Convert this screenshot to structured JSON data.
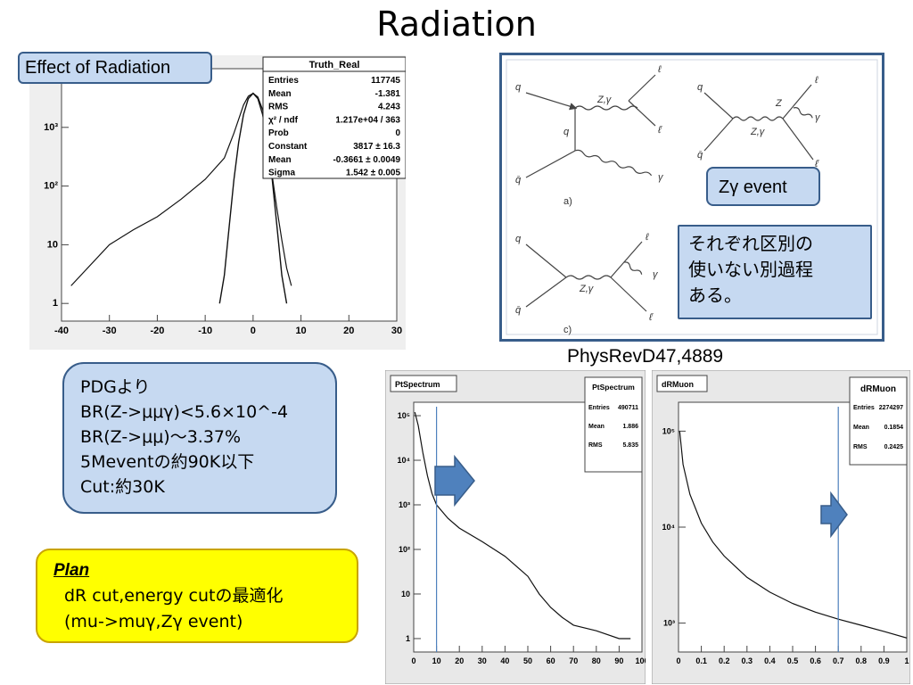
{
  "slide": {
    "title": "Radiation"
  },
  "effect_label": "Effect of Radiation",
  "zgamma_label": "Zγ event",
  "jp_note": [
    "それぞれ区別の",
    "使いない別過程",
    "ある。"
  ],
  "reference": "PhysRevD47,4889",
  "pdg_box": [
    "PDGより",
    "BR(Z->μμγ)<5.6×10^-4",
    "BR(Z->μμ)〜3.37%",
    "5Meventの約90K以下",
    "Cut:約30K"
  ],
  "plan": {
    "title": "Plan",
    "lines": [
      "dR cut,energy cutの最適化",
      "(mu->muγ,Zγ event)"
    ]
  },
  "feynman": {
    "panel_a_label": "a)",
    "panel_c_label": "c)",
    "particles": {
      "q": "q",
      "qbar": "q̄",
      "l": "ℓ",
      "lbar": "ℓ̄",
      "zg": "Z,γ",
      "z": "Z",
      "gamma": "γ"
    }
  },
  "chart_data": [
    {
      "type": "line",
      "id": "truth-real",
      "title": "Truth_Real",
      "stats": [
        {
          "k": "Entries",
          "v": "117745"
        },
        {
          "k": "Mean",
          "v": "-1.381"
        },
        {
          "k": "RMS",
          "v": "4.243"
        },
        {
          "k": "χ² / ndf",
          "v": "1.217e+04 / 363"
        },
        {
          "k": "Prob",
          "v": "0"
        },
        {
          "k": "Constant",
          "v": "3817 ± 16.3"
        },
        {
          "k": "Mean",
          "v": "-0.3661 ± 0.0049"
        },
        {
          "k": "Sigma",
          "v": "1.542 ± 0.005"
        }
      ],
      "xlim": [
        -40,
        30
      ],
      "ylim": [
        0.5,
        10000
      ],
      "yscale": "log",
      "xticks": [
        "-40",
        "-30",
        "-20",
        "-10",
        "0",
        "10",
        "20",
        "30"
      ],
      "ytick_values": [
        1,
        10,
        100,
        1000
      ],
      "ytick_labels": [
        "1",
        "10",
        "10²",
        "10³"
      ],
      "series": [
        {
          "x": [
            -38,
            -30,
            -25,
            -20,
            -15,
            -10,
            -6,
            -4,
            -2,
            -1,
            0,
            1,
            2,
            3,
            4,
            5,
            6,
            7,
            8
          ],
          "y": [
            2,
            10,
            18,
            30,
            60,
            130,
            300,
            800,
            2400,
            3400,
            3800,
            3300,
            2000,
            800,
            150,
            40,
            12,
            4,
            2
          ]
        },
        {
          "x": [
            -7,
            -6,
            -5,
            -4,
            -3,
            -2,
            -1,
            0,
            1,
            2,
            3,
            4,
            5,
            6,
            7
          ],
          "y": [
            1,
            3,
            20,
            130,
            560,
            1650,
            3100,
            3800,
            3100,
            1650,
            560,
            130,
            20,
            3,
            1
          ]
        }
      ]
    },
    {
      "type": "line",
      "id": "pt-spectrum",
      "title": "PtSpectrum",
      "stats": [
        {
          "k": "Entries",
          "v": "490711"
        },
        {
          "k": "Mean",
          "v": "1.886"
        },
        {
          "k": "RMS",
          "v": "5.835"
        }
      ],
      "xlim": [
        0,
        100
      ],
      "ylim": [
        0.5,
        200000
      ],
      "yscale": "log",
      "xticks": [
        "0",
        "10",
        "20",
        "30",
        "40",
        "50",
        "60",
        "70",
        "80",
        "90",
        "100"
      ],
      "ytick_values": [
        1,
        10,
        100,
        1000,
        10000,
        100000
      ],
      "ytick_labels": [
        "1",
        "10",
        "10²",
        "10³",
        "10⁴",
        "10⁵"
      ],
      "cut_x": 10,
      "series": [
        {
          "x": [
            0.5,
            2,
            4,
            6,
            8,
            10,
            15,
            20,
            30,
            40,
            50,
            55,
            60,
            65,
            70,
            80,
            90,
            95
          ],
          "y": [
            120000,
            60000,
            15000,
            4500,
            1800,
            1000,
            500,
            300,
            150,
            70,
            25,
            10,
            5,
            3,
            2,
            1.5,
            1,
            1
          ]
        }
      ]
    },
    {
      "type": "line",
      "id": "dr-muon",
      "title": "dRMuon",
      "stats": [
        {
          "k": "Entries",
          "v": "2274297"
        },
        {
          "k": "Mean",
          "v": "0.1854"
        },
        {
          "k": "RMS",
          "v": "0.2425"
        }
      ],
      "xlim": [
        0,
        1
      ],
      "ylim": [
        500,
        200000
      ],
      "yscale": "log",
      "xticks": [
        "0",
        "0.1",
        "0.2",
        "0.3",
        "0.4",
        "0.5",
        "0.6",
        "0.7",
        "0.8",
        "0.9",
        "1"
      ],
      "ytick_values": [
        1000,
        10000,
        100000
      ],
      "ytick_labels": [
        "10³",
        "10⁴",
        "10⁵"
      ],
      "cut_x": 0.7,
      "series": [
        {
          "x": [
            0.005,
            0.02,
            0.05,
            0.1,
            0.15,
            0.2,
            0.3,
            0.4,
            0.5,
            0.6,
            0.7,
            0.8,
            0.9,
            1.0
          ],
          "y": [
            100000,
            45000,
            22000,
            11000,
            7000,
            5000,
            3000,
            2100,
            1600,
            1300,
            1100,
            950,
            820,
            700
          ]
        }
      ]
    }
  ]
}
